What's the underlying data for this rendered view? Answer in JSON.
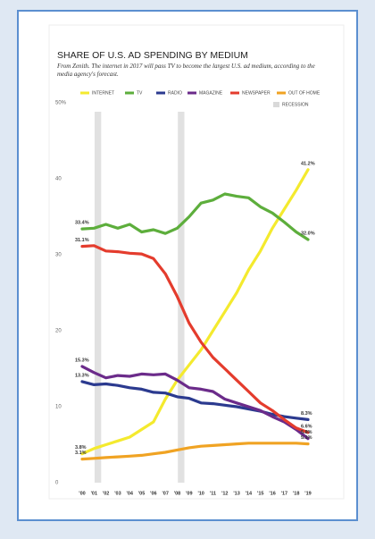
{
  "chart_data": {
    "type": "line",
    "title": "SHARE OF U.S. AD SPENDING BY MEDIUM",
    "subtitle": "From Zenith. The internet in 2017 will pass TV to become the largest U.S. ad medium, according to the media agency's forecast.",
    "categories": [
      "'00",
      "'01",
      "'02",
      "'03",
      "'04",
      "'05",
      "'06",
      "'07",
      "'08",
      "'09",
      "'10",
      "'11",
      "'12",
      "'13",
      "'14",
      "'15",
      "'16",
      "'17",
      "'18",
      "'19"
    ],
    "ylim": [
      0,
      50
    ],
    "yticks": [
      0,
      10,
      20,
      30,
      40,
      {
        "value": 50,
        "label": "50%"
      }
    ],
    "grid": false,
    "recession": {
      "label": "RECESSION",
      "categories": [
        "'01",
        "'08"
      ],
      "color": "#d9d9d9"
    },
    "series": [
      {
        "name": "INTERNET",
        "color": "#f4ea2e",
        "values": [
          3.8,
          4.5,
          5,
          5.5,
          6,
          7,
          8,
          11,
          13.5,
          15.5,
          17.5,
          20,
          22.5,
          25,
          28,
          30.5,
          33.5,
          36,
          38.5,
          41.2
        ],
        "value_labels": [
          "3.8%",
          null,
          null,
          null,
          null,
          null,
          null,
          null,
          null,
          null,
          null,
          null,
          null,
          null,
          null,
          null,
          null,
          null,
          null,
          "41.2%"
        ]
      },
      {
        "name": "TV",
        "color": "#5dae3c",
        "values": [
          33.4,
          33.5,
          34,
          33.5,
          34,
          33,
          33.3,
          32.8,
          33.5,
          35,
          36.8,
          37.2,
          38,
          37.7,
          37.5,
          36.3,
          35.5,
          34.3,
          33,
          32
        ],
        "value_labels": [
          "33.4%",
          null,
          null,
          null,
          null,
          null,
          null,
          null,
          null,
          null,
          null,
          null,
          null,
          null,
          null,
          null,
          null,
          null,
          null,
          "32.0%"
        ]
      },
      {
        "name": "RADIO",
        "color": "#2b3a8f",
        "values": [
          13.3,
          12.9,
          13,
          12.8,
          12.5,
          12.3,
          11.9,
          11.8,
          11.3,
          11.1,
          10.5,
          10.4,
          10.2,
          10,
          9.7,
          9.4,
          9,
          8.7,
          8.5,
          8.3
        ],
        "value_labels": [
          "13.3%",
          null,
          null,
          null,
          null,
          null,
          null,
          null,
          null,
          null,
          null,
          null,
          null,
          null,
          null,
          null,
          null,
          null,
          null,
          "8.3%"
        ]
      },
      {
        "name": "MAGAZINE",
        "color": "#6b2b8a",
        "values": [
          15.3,
          14.5,
          13.8,
          14.1,
          14,
          14.3,
          14.2,
          14.3,
          13.5,
          12.5,
          12.3,
          12,
          11,
          10.5,
          10,
          9.5,
          8.7,
          8,
          7,
          5.8
        ],
        "value_labels": [
          "15.3%",
          null,
          null,
          null,
          null,
          null,
          null,
          null,
          null,
          null,
          null,
          null,
          null,
          null,
          null,
          null,
          null,
          null,
          null,
          "5.8%"
        ]
      },
      {
        "name": "NEWSPAPER",
        "color": "#e43c2d",
        "values": [
          31.1,
          31.2,
          30.5,
          30.4,
          30.2,
          30.1,
          29.5,
          27.5,
          24.5,
          21,
          18.5,
          16.5,
          15,
          13.5,
          12,
          10.5,
          9.5,
          8.3,
          7.2,
          6.6
        ],
        "value_labels": [
          "31.1%",
          null,
          null,
          null,
          null,
          null,
          null,
          null,
          null,
          null,
          null,
          null,
          null,
          null,
          null,
          null,
          null,
          null,
          null,
          "6.6%"
        ]
      },
      {
        "name": "OUT OF HOME",
        "color": "#f0a323",
        "values": [
          3.1,
          3.2,
          3.3,
          3.4,
          3.5,
          3.6,
          3.8,
          4,
          4.3,
          4.6,
          4.8,
          4.9,
          5,
          5.1,
          5.2,
          5.2,
          5.2,
          5.2,
          5.2,
          5.1
        ],
        "value_labels": [
          "3.1%",
          null,
          null,
          null,
          null,
          null,
          null,
          null,
          null,
          null,
          null,
          null,
          null,
          null,
          null,
          null,
          null,
          null,
          null,
          "5.1%"
        ]
      }
    ]
  }
}
